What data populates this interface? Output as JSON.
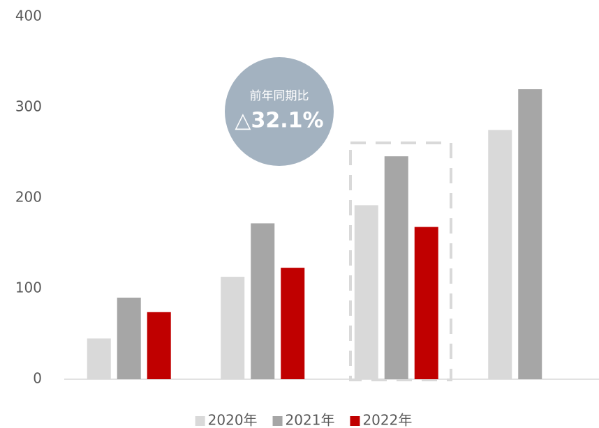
{
  "chart_data": {
    "type": "bar",
    "categories": [
      null,
      null,
      null,
      null
    ],
    "series": [
      {
        "name": "2020年",
        "color": "#d9d9d9",
        "values": [
          45,
          113,
          192,
          275
        ]
      },
      {
        "name": "2021年",
        "color": "#a6a6a6",
        "values": [
          90,
          172,
          246,
          320
        ]
      },
      {
        "name": "2022年",
        "color": "#c00000",
        "values": [
          74,
          123,
          168,
          null
        ]
      }
    ],
    "ylim": [
      0,
      400
    ],
    "yticks": [
      0,
      100,
      200,
      300,
      400
    ],
    "annotations": [
      "前年同期比",
      "△32.1%"
    ],
    "legend": "bottom"
  }
}
